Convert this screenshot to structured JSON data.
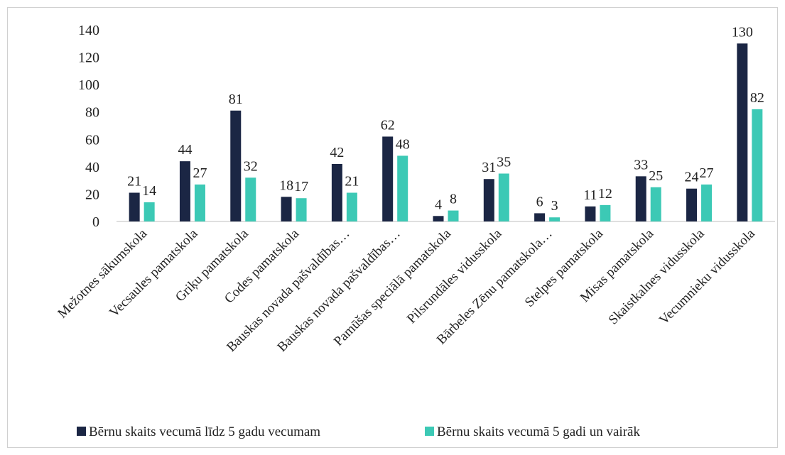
{
  "chart_data": {
    "type": "bar",
    "categories": [
      "Mežotnes sākumskola",
      "Vecsaules pamatskola",
      "Griķu pamatskola",
      "Codes pamatskola",
      "Bauskas novada pašvaldības…",
      "Bauskas novada pašvaldības…",
      "Pamūšas speciālā pamatskola",
      "Pilsrundāles vidusskola",
      "Bārbeles Zēnu pamatskola…",
      "Stelpes pamatskola",
      "Misas pamatskola",
      "Skaistkalnes vidusskola",
      "Vecumnieku vidusskola"
    ],
    "series": [
      {
        "name": "Bērnu skaits vecumā līdz 5 gadu vecumam",
        "color": "#1b2644",
        "values": [
          21,
          44,
          81,
          18,
          42,
          62,
          4,
          31,
          6,
          11,
          33,
          24,
          130
        ]
      },
      {
        "name": "Bērnu skaits vecumā 5 gadi un vairāk",
        "color": "#3cc9b5",
        "values": [
          14,
          27,
          32,
          17,
          21,
          48,
          8,
          35,
          3,
          12,
          25,
          27,
          82
        ]
      }
    ],
    "ylim": [
      0,
      140
    ],
    "yticks": [
      0,
      20,
      40,
      60,
      80,
      100,
      120,
      140
    ],
    "grid": false,
    "legend": "bottom"
  }
}
